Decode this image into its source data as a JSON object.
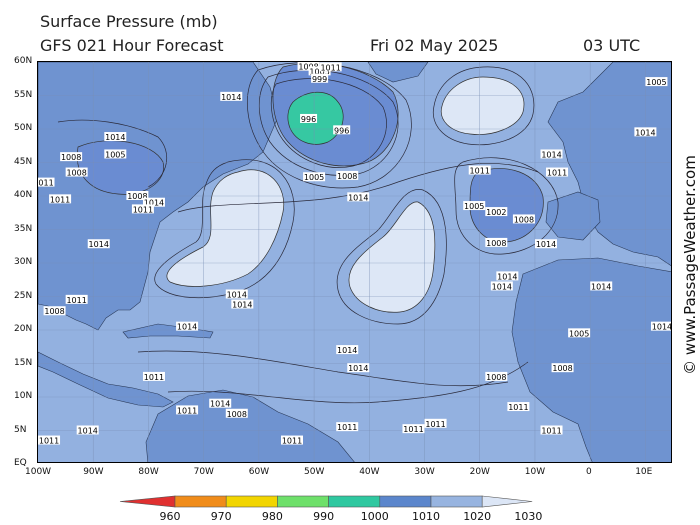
{
  "header": {
    "title": "Surface Pressure (mb)",
    "subtitle": "GFS 021 Hour Forecast",
    "date": "Fri 02 May 2025",
    "time": "03 UTC"
  },
  "copyright": "© www.PassageWeather.com",
  "axes": {
    "lat_labels": [
      "60N",
      "55N",
      "50N",
      "45N",
      "40N",
      "35N",
      "30N",
      "25N",
      "20N",
      "15N",
      "10N",
      "5N",
      "EQ"
    ],
    "lon_labels": [
      "100W",
      "90W",
      "80W",
      "70W",
      "60W",
      "50W",
      "40W",
      "30W",
      "20W",
      "10W",
      "0",
      "10E"
    ]
  },
  "colorbar": {
    "labels": [
      "960",
      "970",
      "980",
      "990",
      "1000",
      "1010",
      "1020",
      "1030"
    ],
    "colors": [
      "#e03030",
      "#f08c1a",
      "#f2d500",
      "#6ee06a",
      "#2fc8a0",
      "#5b86cc",
      "#97b4e0",
      "#dce6f6"
    ]
  },
  "map_colors": {
    "land": "#6f93d0",
    "ocean": "#93b1e0",
    "high": "#dde7f6",
    "low": "#6a8cd2",
    "deep_low": "#36c8a2"
  },
  "pressure_labels": [
    {
      "text": "1014",
      "lon": -65,
      "lat": 54.8
    },
    {
      "text": "1008",
      "lon": -51,
      "lat": 59.3
    },
    {
      "text": "1005",
      "lon": -49,
      "lat": 58.6
    },
    {
      "text": "1011",
      "lon": -47,
      "lat": 59.2
    },
    {
      "text": "999",
      "lon": -49,
      "lat": 57.5
    },
    {
      "text": "996",
      "lon": -51,
      "lat": 51.5
    },
    {
      "text": "996",
      "lon": -45,
      "lat": 49.8
    },
    {
      "text": "1005",
      "lon": -50,
      "lat": 42.8
    },
    {
      "text": "1008",
      "lon": -44,
      "lat": 43.0
    },
    {
      "text": "1014",
      "lon": -42,
      "lat": 39.8
    },
    {
      "text": "1014",
      "lon": -86,
      "lat": 48.8
    },
    {
      "text": "1008",
      "lon": -94,
      "lat": 45.8
    },
    {
      "text": "1005",
      "lon": -86,
      "lat": 46.2
    },
    {
      "text": "1008",
      "lon": -93,
      "lat": 43.5
    },
    {
      "text": "1011",
      "lon": -99,
      "lat": 42.0
    },
    {
      "text": "1011",
      "lon": -96,
      "lat": 39.5
    },
    {
      "text": "1008",
      "lon": -82,
      "lat": 40.0
    },
    {
      "text": "1014",
      "lon": -79,
      "lat": 39.0
    },
    {
      "text": "1011",
      "lon": -81,
      "lat": 38.0
    },
    {
      "text": "1014",
      "lon": -89,
      "lat": 32.8
    },
    {
      "text": "1014",
      "lon": -64,
      "lat": 25.3
    },
    {
      "text": "1014",
      "lon": -63,
      "lat": 23.8
    },
    {
      "text": "1014",
      "lon": -73,
      "lat": 20.5
    },
    {
      "text": "1011",
      "lon": -93,
      "lat": 24.5
    },
    {
      "text": "1014",
      "lon": -44,
      "lat": 17.0
    },
    {
      "text": "1014",
      "lon": -42,
      "lat": 14.3
    },
    {
      "text": "1011",
      "lon": -44,
      "lat": 5.5
    },
    {
      "text": "1011",
      "lon": -32,
      "lat": 5.2
    },
    {
      "text": "1011",
      "lon": -28,
      "lat": 6.0
    },
    {
      "text": "1011",
      "lon": -20,
      "lat": 43.8
    },
    {
      "text": "1005",
      "lon": -21,
      "lat": 38.5
    },
    {
      "text": "1002",
      "lon": -17,
      "lat": 37.6
    },
    {
      "text": "1008",
      "lon": -12,
      "lat": 36.5
    },
    {
      "text": "1008",
      "lon": -17,
      "lat": 33.0
    },
    {
      "text": "1014",
      "lon": -7,
      "lat": 46.2
    },
    {
      "text": "1011",
      "lon": -6,
      "lat": 43.5
    },
    {
      "text": "1014",
      "lon": -8,
      "lat": 32.8
    },
    {
      "text": "1014",
      "lon": -15,
      "lat": 28.0
    },
    {
      "text": "1014",
      "lon": -16,
      "lat": 26.5
    },
    {
      "text": "1014",
      "lon": 2,
      "lat": 26.5
    },
    {
      "text": "1014",
      "lon": 13,
      "lat": 20.5
    },
    {
      "text": "1005",
      "lon": -2,
      "lat": 19.5
    },
    {
      "text": "1008",
      "lon": -17,
      "lat": 13.0
    },
    {
      "text": "1008",
      "lon": -5,
      "lat": 14.3
    },
    {
      "text": "1011",
      "lon": -13,
      "lat": 8.5
    },
    {
      "text": "1011",
      "lon": -7,
      "lat": 5.0
    },
    {
      "text": "1008",
      "lon": -97,
      "lat": 22.8
    },
    {
      "text": "1011",
      "lon": -79,
      "lat": 13.0
    },
    {
      "text": "1011",
      "lon": -73,
      "lat": 8.0
    },
    {
      "text": "1008",
      "lon": -64,
      "lat": 7.5
    },
    {
      "text": "1014",
      "lon": -67,
      "lat": 9.0
    },
    {
      "text": "1011",
      "lon": -54,
      "lat": 3.5
    },
    {
      "text": "1014",
      "lon": -91,
      "lat": 5.0
    },
    {
      "text": "1011",
      "lon": -98,
      "lat": 3.5
    },
    {
      "text": "1005",
      "lon": 12,
      "lat": 57.0
    },
    {
      "text": "1014",
      "lon": 10,
      "lat": 49.5
    }
  ]
}
